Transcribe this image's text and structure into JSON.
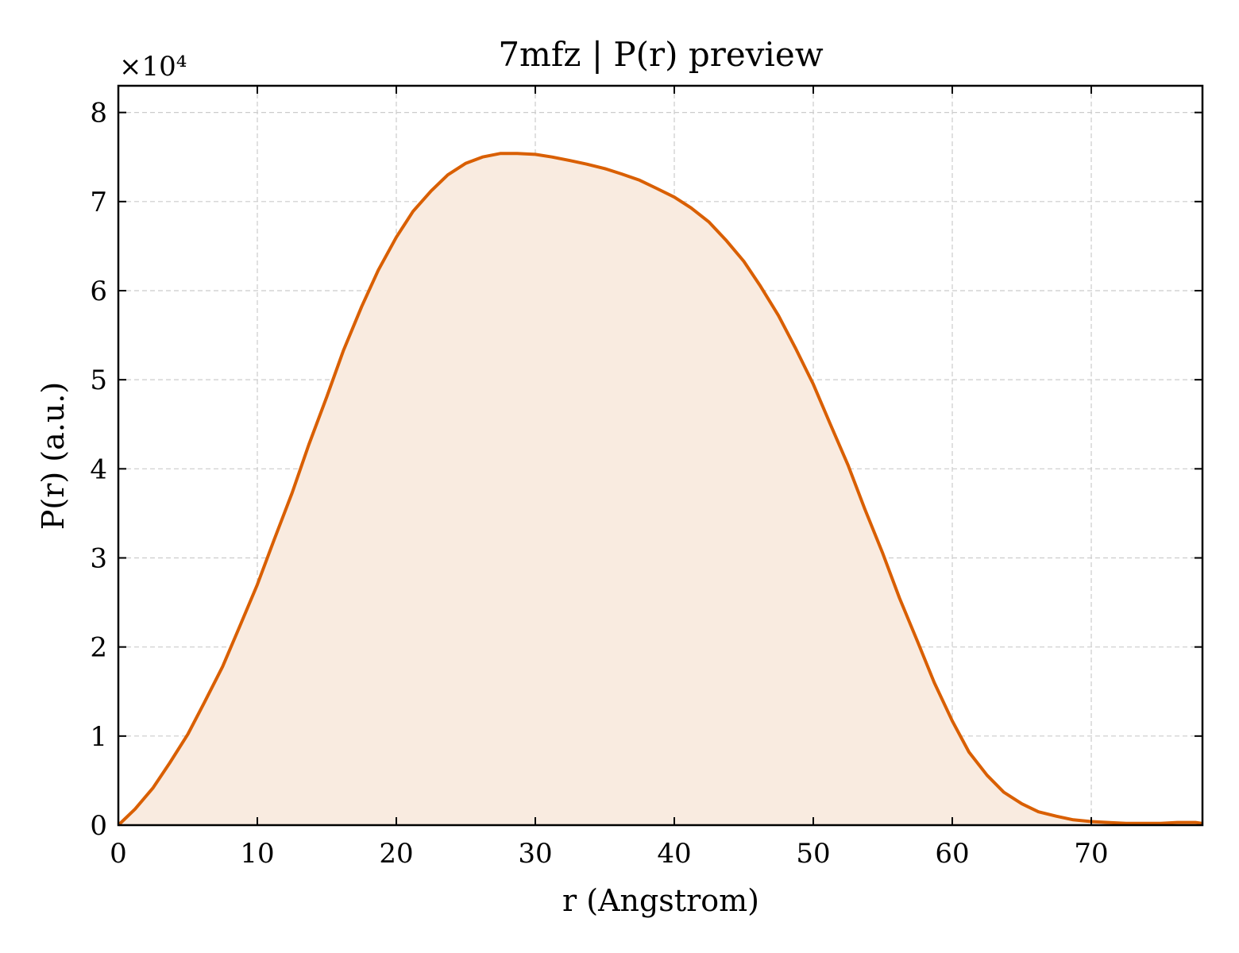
{
  "chart_data": {
    "type": "area",
    "title": "7mfz | P(r) preview",
    "xlabel": "r (Angstrom)",
    "ylabel": "P(r) (a.u.)",
    "y_offset_label": "×10⁴",
    "xlim": [
      0,
      78
    ],
    "ylim": [
      0,
      8.3
    ],
    "x_ticks": [
      0,
      10,
      20,
      30,
      40,
      50,
      60,
      70
    ],
    "y_ticks": [
      0,
      1,
      2,
      3,
      4,
      5,
      6,
      7,
      8
    ],
    "grid": true,
    "legend": "none",
    "line_color": "#d95f02",
    "fill_color": "#f9ebe0",
    "x": [
      0,
      1.2,
      2.5,
      3.7,
      5,
      6.2,
      7.5,
      8.7,
      10,
      11.2,
      12.5,
      13.7,
      15,
      16.2,
      17.5,
      18.7,
      20,
      21.2,
      22.5,
      23.7,
      25,
      26.2,
      27.5,
      28.7,
      30,
      31.2,
      32.5,
      33.7,
      35,
      36.2,
      37.5,
      38.7,
      40,
      41.2,
      42.5,
      43.7,
      45,
      46.2,
      47.5,
      48.7,
      50,
      51.2,
      52.5,
      53.7,
      55,
      56.2,
      57.5,
      58.7,
      60,
      61.2,
      62.5,
      63.7,
      65,
      66.2,
      67.5,
      68.7,
      70,
      71.2,
      72.5,
      73.7,
      75,
      76.2,
      77.5,
      78
    ],
    "series": [
      {
        "values": [
          0,
          0.18,
          0.42,
          0.7,
          1.02,
          1.38,
          1.78,
          2.22,
          2.7,
          3.2,
          3.73,
          4.27,
          4.81,
          5.33,
          5.82,
          6.23,
          6.6,
          6.89,
          7.12,
          7.3,
          7.43,
          7.5,
          7.54,
          7.54,
          7.53,
          7.5,
          7.46,
          7.42,
          7.37,
          7.31,
          7.24,
          7.15,
          7.05,
          6.93,
          6.77,
          6.57,
          6.33,
          6.05,
          5.72,
          5.36,
          4.95,
          4.51,
          4.04,
          3.55,
          3.05,
          2.55,
          2.06,
          1.6,
          1.17,
          0.82,
          0.56,
          0.37,
          0.24,
          0.15,
          0.1,
          0.06,
          0.04,
          0.03,
          0.02,
          0.02,
          0.02,
          0.03,
          0.03,
          0.02
        ]
      }
    ]
  }
}
